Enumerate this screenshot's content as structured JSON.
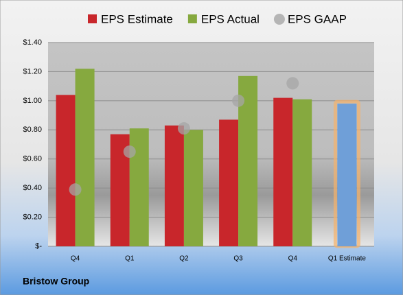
{
  "chart_data": {
    "type": "bar",
    "categories": [
      "Q4",
      "Q1",
      "Q2",
      "Q3",
      "Q4",
      "Q1 Estimate"
    ],
    "series": [
      {
        "name": "EPS Estimate",
        "color": "#c8262b",
        "values": [
          1.04,
          0.77,
          0.83,
          0.87,
          1.02,
          0.98
        ],
        "highlight_color": "#6f9fd8",
        "highlight_border": "#f5b26b"
      },
      {
        "name": "EPS Actual",
        "color": "#86a93f",
        "values": [
          1.22,
          0.81,
          0.8,
          1.17,
          1.01,
          null
        ]
      },
      {
        "name": "EPS GAAP",
        "color": "#a6a6a6",
        "values": [
          0.39,
          0.65,
          0.81,
          1.0,
          1.12,
          null
        ],
        "marker": "circle"
      }
    ],
    "ylim": [
      0,
      1.4
    ],
    "yticks": [
      {
        "value": 0,
        "label": "$-"
      },
      {
        "value": 0.2,
        "label": "$0.20"
      },
      {
        "value": 0.4,
        "label": "$0.40"
      },
      {
        "value": 0.6,
        "label": "$0.60"
      },
      {
        "value": 0.8,
        "label": "$0.80"
      },
      {
        "value": 1.0,
        "label": "$1.00"
      },
      {
        "value": 1.2,
        "label": "$1.20"
      },
      {
        "value": 1.4,
        "label": "$1.40"
      }
    ],
    "grid": true,
    "footer": "Bristow Group"
  }
}
